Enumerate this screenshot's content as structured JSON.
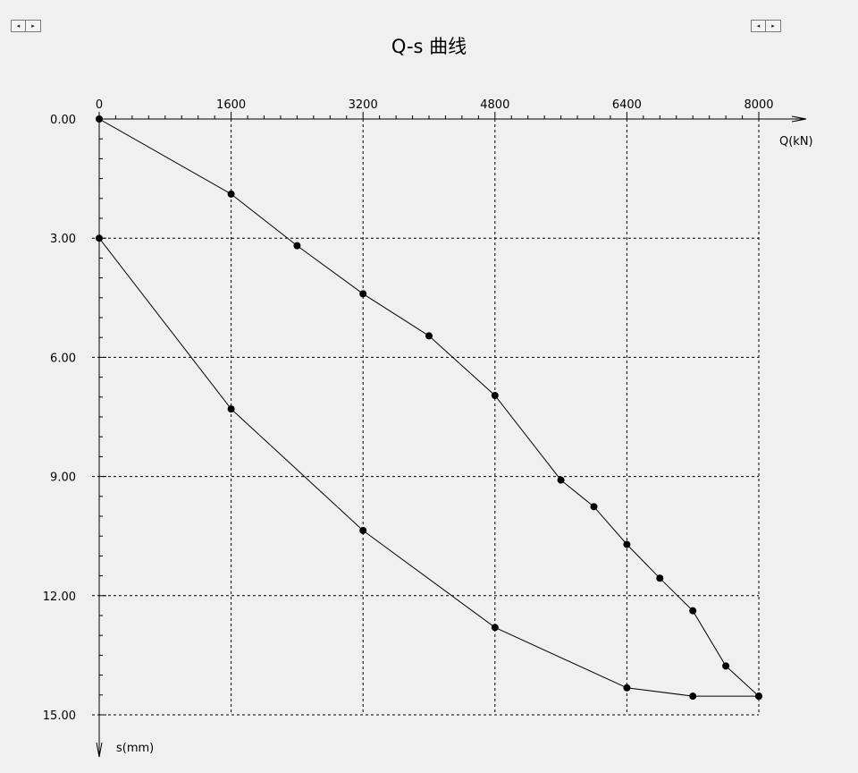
{
  "controls": {
    "left_prev": "◂",
    "left_next": "▸",
    "right_prev": "◂",
    "right_next": "▸"
  },
  "chart_data": {
    "type": "line",
    "title": "Q-s 曲线",
    "xlabel": "Q(kN)",
    "ylabel": "s(mm)",
    "x_axis_position": "top",
    "y_axis_inverted": true,
    "xlim": [
      0,
      8000
    ],
    "ylim": [
      0,
      15
    ],
    "xticks": [
      0,
      1600,
      3200,
      4800,
      6400,
      8000
    ],
    "xtick_labels": [
      "0",
      "1600",
      "3200",
      "4800",
      "6400",
      "8000"
    ],
    "yticks": [
      0,
      3,
      6,
      9,
      12,
      15
    ],
    "ytick_labels": [
      "0.00",
      "3.00",
      "6.00",
      "9.00",
      "12.00",
      "15.00"
    ],
    "grid": "dashed",
    "series": [
      {
        "points": [
          [
            0,
            0
          ],
          [
            1600,
            1.89
          ],
          [
            2400,
            3.19
          ],
          [
            3200,
            4.4
          ],
          [
            4000,
            5.46
          ],
          [
            4800,
            6.96
          ],
          [
            5600,
            9.09
          ],
          [
            6000,
            9.76
          ],
          [
            6400,
            10.71
          ],
          [
            6800,
            11.56
          ],
          [
            7200,
            12.38
          ],
          [
            7600,
            13.77
          ],
          [
            8000,
            14.53
          ]
        ]
      },
      {
        "points": [
          [
            8000,
            14.53
          ],
          [
            7200,
            14.53
          ],
          [
            6400,
            14.32
          ],
          [
            4800,
            12.8
          ],
          [
            3200,
            10.36
          ],
          [
            1600,
            7.3
          ],
          [
            0,
            3.0
          ]
        ]
      }
    ],
    "line_color": "#000000",
    "marker_color": "#000000"
  }
}
